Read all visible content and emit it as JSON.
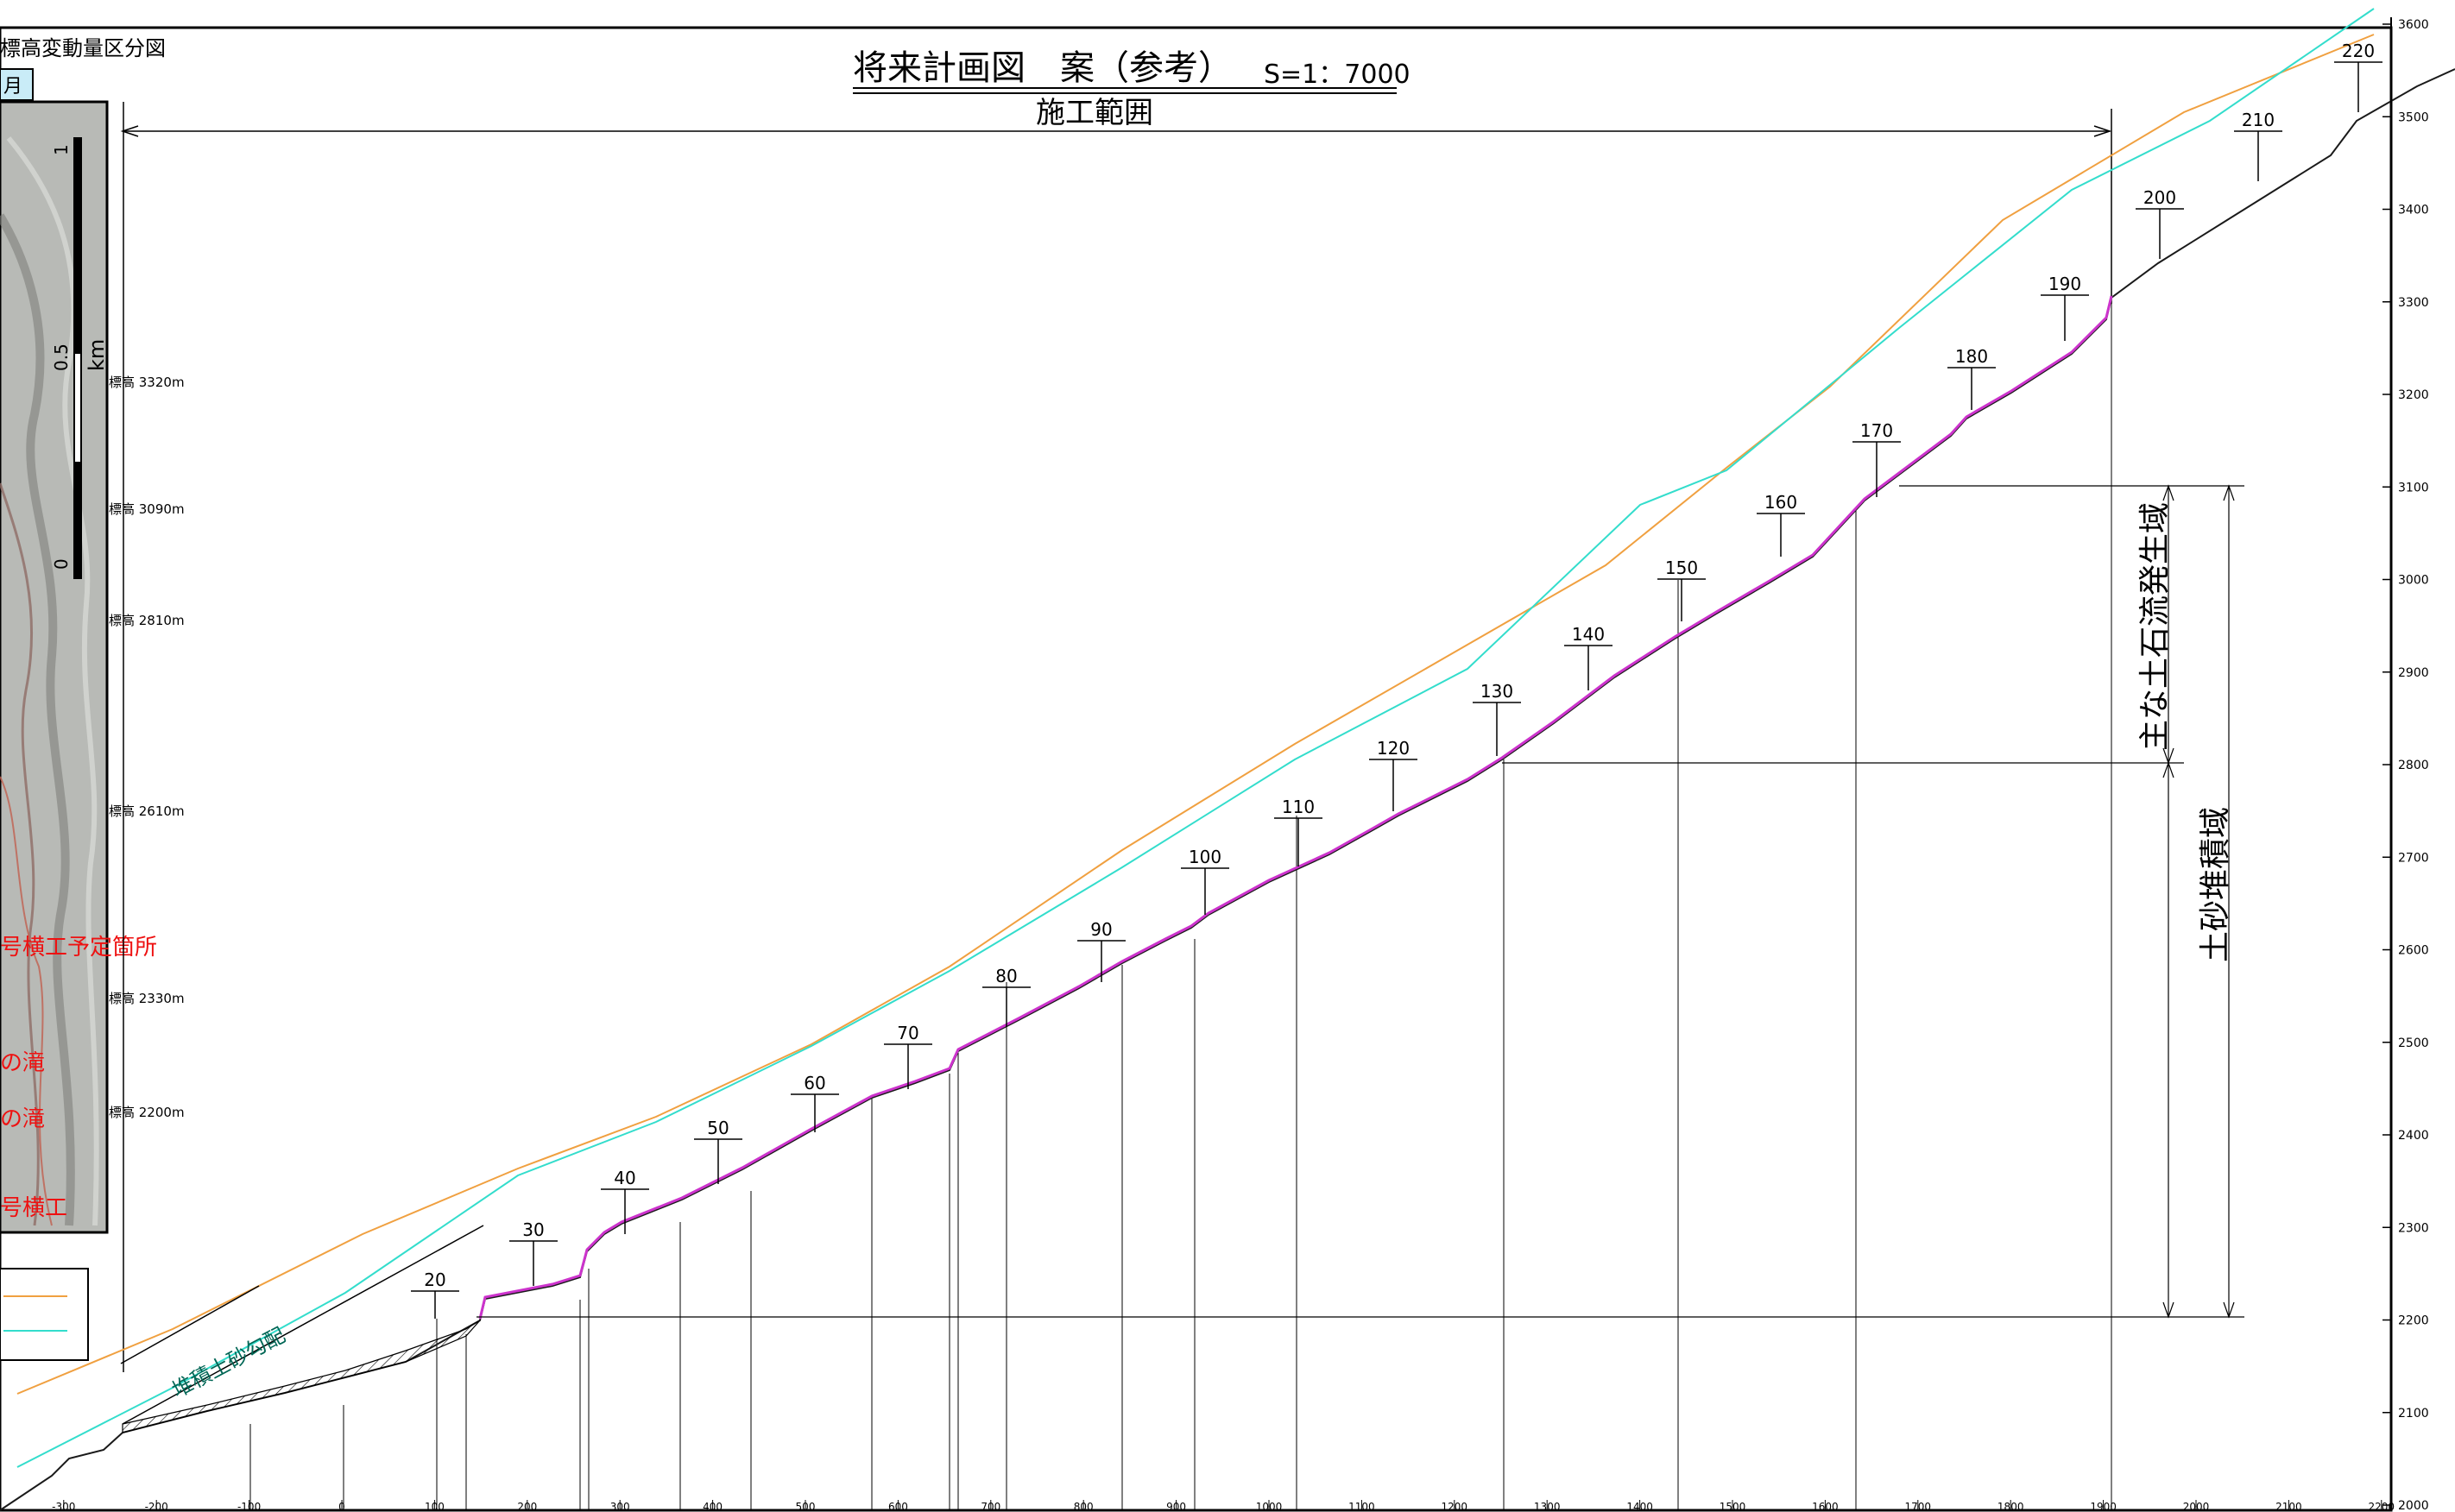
{
  "drawing": {
    "title": "将来計画図　案（参考）",
    "scale": "S=1：7000",
    "range_label": "施工範囲",
    "slope_label": "堆積土砂勾配",
    "zone_source": "主な土石流発生域",
    "zone_deposit": "土砂堆積域"
  },
  "inset": {
    "header": "標高変動量区分図",
    "tab": "月",
    "scale_label": "km",
    "scale_ticks": [
      "0",
      "0.5",
      "1"
    ],
    "elevations": [
      "標高 3320m",
      "標高 3090m",
      "標高 2810m",
      "標高 2610m",
      "標高 2330m",
      "標高 2200m"
    ],
    "red_notes": [
      "号横工予定箇所",
      "の滝",
      "の滝",
      "号横工"
    ]
  },
  "axes": {
    "x_ticks": [
      "-300",
      "-200",
      "-100",
      "0",
      "100",
      "200",
      "300",
      "400",
      "500",
      "600",
      "700",
      "800",
      "900",
      "1000",
      "1100",
      "1200",
      "1300",
      "1400",
      "1500",
      "1600",
      "1700",
      "1800",
      "1900",
      "2000",
      "2100",
      "2200"
    ],
    "y_ticks": [
      "2000",
      "2100",
      "2200",
      "2300",
      "2400",
      "2500",
      "2600",
      "2700",
      "2800",
      "2900",
      "3000",
      "3100",
      "3200",
      "3300",
      "3400",
      "3500",
      "3600"
    ]
  },
  "stations": [
    "20",
    "30",
    "40",
    "50",
    "60",
    "70",
    "80",
    "90",
    "100",
    "110",
    "120",
    "130",
    "140",
    "150",
    "160",
    "170",
    "180",
    "190",
    "200",
    "210",
    "220"
  ],
  "colors": {
    "ground": "#1a1a1a",
    "plan": "#cc33cc",
    "orange_line": "#f0a040",
    "cyan_line": "#33ddcc",
    "red_text": "#ee1111"
  }
}
